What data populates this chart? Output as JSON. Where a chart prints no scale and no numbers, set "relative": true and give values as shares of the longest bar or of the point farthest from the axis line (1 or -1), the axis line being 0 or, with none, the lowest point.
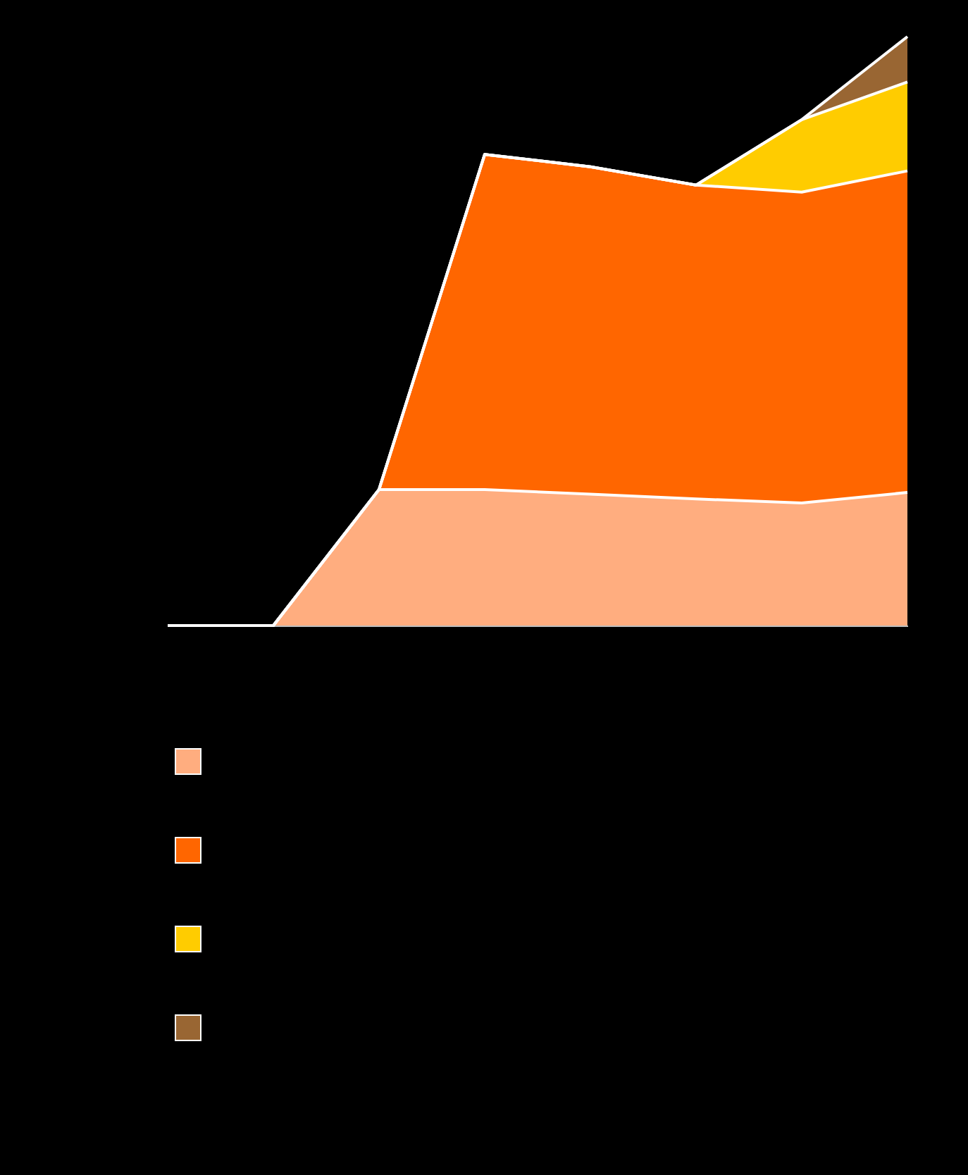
{
  "chart_data": {
    "type": "area",
    "relative": true,
    "stacked": true,
    "categories": [
      null,
      null,
      null,
      null,
      null,
      null,
      null,
      null
    ],
    "series": [
      {
        "color": "#ffad7f",
        "values": [
          0,
          0,
          0.231,
          0.231,
          0.223,
          0.215,
          0.208,
          0.226
        ]
      },
      {
        "color": "#ff6600",
        "values": [
          0,
          0,
          0,
          0.569,
          0.556,
          0.533,
          0.528,
          0.546
        ]
      },
      {
        "color": "#ffcc00",
        "values": [
          0,
          0,
          0,
          0,
          0,
          0,
          0.123,
          0.151
        ]
      },
      {
        "color": "#996633",
        "values": [
          0,
          0,
          0,
          0,
          0,
          0,
          0,
          0.077
        ]
      }
    ]
  }
}
